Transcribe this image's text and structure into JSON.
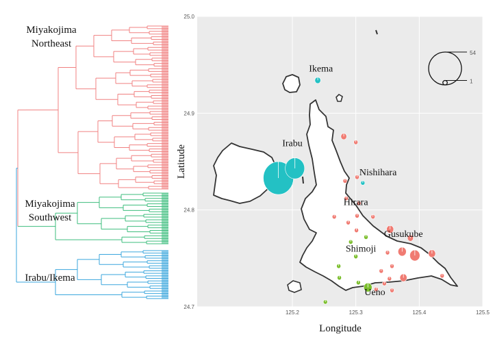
{
  "chart_data": [
    {
      "type": "dendrogram",
      "clades": [
        {
          "name": "Miyakojima Northeast",
          "label_lines": [
            "Miyakojima",
            "Northeast"
          ],
          "color": "#f08080",
          "leaves": 62
        },
        {
          "name": "Miyakojima Southwest",
          "label_lines": [
            "Miyakojima",
            "Southwest"
          ],
          "color": "#3dbd7d",
          "leaves": 20
        },
        {
          "name": "Irabu/Ikema",
          "label_lines": [
            "Irabu/Ikema"
          ],
          "color": "#3aa6dd",
          "leaves": 20
        }
      ]
    },
    {
      "type": "map_pie_scatter",
      "xlabel": "Longitude",
      "ylabel": "Latitude",
      "xlim": [
        125.05,
        125.5
      ],
      "ylim": [
        24.7,
        25.0
      ],
      "x_ticks": [
        "125.2",
        "125.3",
        "125.4",
        "125.5"
      ],
      "x_tick_values": [
        125.2,
        125.3,
        125.4,
        125.5
      ],
      "y_ticks": [
        "24.7",
        "24.8",
        "24.9",
        "25.0"
      ],
      "y_tick_values": [
        24.7,
        24.8,
        24.9,
        25.0
      ],
      "grid": true,
      "background": "#ebebeb",
      "size_legend": {
        "values": [
          "54",
          "1"
        ],
        "nums": [
          54,
          1
        ]
      },
      "colors": {
        "northeast": "#f07b72",
        "southwest": "#7cbf2e",
        "irabu_ikema": "#23c1c4"
      },
      "place_labels": [
        {
          "text": "Ikema",
          "lon": 125.245,
          "lat": 24.943
        },
        {
          "text": "Irabu",
          "lon": 125.2,
          "lat": 24.866
        },
        {
          "text": "Nishihara",
          "lon": 125.335,
          "lat": 24.836
        },
        {
          "text": "Hirara",
          "lon": 125.3,
          "lat": 24.805
        },
        {
          "text": "Gusukube",
          "lon": 125.375,
          "lat": 24.772
        },
        {
          "text": "Shimoji",
          "lon": 125.308,
          "lat": 24.757
        },
        {
          "text": "Ueno",
          "lon": 125.33,
          "lat": 24.712
        }
      ],
      "sites": [
        {
          "lon": 125.178,
          "lat": 24.833,
          "n": 54,
          "group": "irabu_ikema"
        },
        {
          "lon": 125.204,
          "lat": 24.843,
          "n": 22,
          "group": "irabu_ikema"
        },
        {
          "lon": 125.24,
          "lat": 24.934,
          "n": 2,
          "group": "irabu_ikema"
        },
        {
          "lon": 125.311,
          "lat": 24.828,
          "n": 1,
          "group": "irabu_ikema"
        },
        {
          "lon": 125.281,
          "lat": 24.876,
          "n": 2,
          "group": "northeast"
        },
        {
          "lon": 125.3,
          "lat": 24.87,
          "n": 1,
          "group": "northeast"
        },
        {
          "lon": 125.283,
          "lat": 24.83,
          "n": 1,
          "group": "northeast"
        },
        {
          "lon": 125.302,
          "lat": 24.834,
          "n": 1,
          "group": "northeast"
        },
        {
          "lon": 125.285,
          "lat": 24.812,
          "n": 1,
          "group": "northeast"
        },
        {
          "lon": 125.305,
          "lat": 24.807,
          "n": 1,
          "group": "northeast"
        },
        {
          "lon": 125.266,
          "lat": 24.793,
          "n": 1,
          "group": "northeast"
        },
        {
          "lon": 125.302,
          "lat": 24.794,
          "n": 1,
          "group": "northeast"
        },
        {
          "lon": 125.288,
          "lat": 24.787,
          "n": 1,
          "group": "northeast"
        },
        {
          "lon": 125.327,
          "lat": 24.793,
          "n": 1,
          "group": "northeast"
        },
        {
          "lon": 125.301,
          "lat": 24.779,
          "n": 1,
          "group": "northeast"
        },
        {
          "lon": 125.354,
          "lat": 24.78,
          "n": 3,
          "group": "northeast"
        },
        {
          "lon": 125.386,
          "lat": 24.771,
          "n": 2,
          "group": "northeast"
        },
        {
          "lon": 125.35,
          "lat": 24.756,
          "n": 1,
          "group": "northeast"
        },
        {
          "lon": 125.373,
          "lat": 24.757,
          "n": 4,
          "group": "northeast"
        },
        {
          "lon": 125.393,
          "lat": 24.753,
          "n": 6,
          "group": "northeast"
        },
        {
          "lon": 125.42,
          "lat": 24.755,
          "n": 3,
          "group": "northeast"
        },
        {
          "lon": 125.357,
          "lat": 24.742,
          "n": 1,
          "group": "northeast"
        },
        {
          "lon": 125.34,
          "lat": 24.737,
          "n": 1,
          "group": "northeast"
        },
        {
          "lon": 125.353,
          "lat": 24.729,
          "n": 1,
          "group": "northeast"
        },
        {
          "lon": 125.375,
          "lat": 24.73,
          "n": 3,
          "group": "northeast"
        },
        {
          "lon": 125.436,
          "lat": 24.732,
          "n": 1,
          "group": "northeast"
        },
        {
          "lon": 125.345,
          "lat": 24.724,
          "n": 1,
          "group": "northeast"
        },
        {
          "lon": 125.332,
          "lat": 24.718,
          "n": 1,
          "group": "northeast"
        },
        {
          "lon": 125.357,
          "lat": 24.717,
          "n": 1,
          "group": "northeast"
        },
        {
          "lon": 125.316,
          "lat": 24.772,
          "n": 1,
          "group": "southwest"
        },
        {
          "lon": 125.292,
          "lat": 24.767,
          "n": 1,
          "group": "southwest"
        },
        {
          "lon": 125.3,
          "lat": 24.752,
          "n": 1,
          "group": "southwest"
        },
        {
          "lon": 125.273,
          "lat": 24.742,
          "n": 1,
          "group": "southwest"
        },
        {
          "lon": 125.319,
          "lat": 24.72,
          "n": 4,
          "group": "southwest"
        },
        {
          "lon": 125.304,
          "lat": 24.725,
          "n": 1,
          "group": "southwest"
        },
        {
          "lon": 125.274,
          "lat": 24.73,
          "n": 1,
          "group": "southwest"
        },
        {
          "lon": 125.252,
          "lat": 24.705,
          "n": 1,
          "group": "southwest"
        }
      ]
    }
  ]
}
